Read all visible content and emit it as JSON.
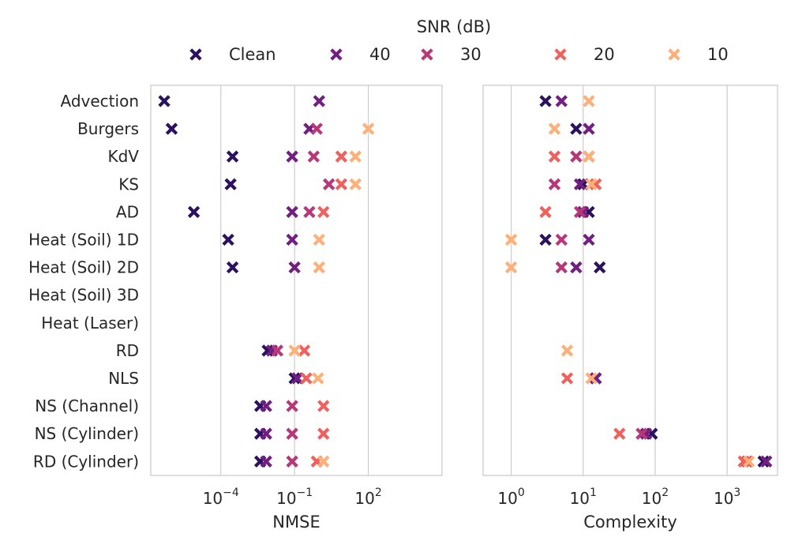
{
  "legend": {
    "title": "SNR (dB)",
    "entries": [
      {
        "label": "Clean",
        "color": "#2c115f"
      },
      {
        "label": "40",
        "color": "#721f81"
      },
      {
        "label": "30",
        "color": "#b73779"
      },
      {
        "label": "20",
        "color": "#f1605d"
      },
      {
        "label": "10",
        "color": "#feb078"
      }
    ]
  },
  "chart_data": [
    {
      "type": "scatter",
      "title": "",
      "xlabel": "NMSE",
      "ylabel": "",
      "xscale": "log",
      "x_ticks": [
        {
          "exp": -4,
          "base": "10",
          "sup": "−4"
        },
        {
          "exp": -1,
          "base": "10",
          "sup": "−1"
        },
        {
          "exp": 2,
          "base": "10",
          "sup": "2"
        }
      ],
      "categories": [
        "Advection",
        "Burgers",
        "KdV",
        "KS",
        "AD",
        "Heat (Soil) 1D",
        "Heat (Soil) 2D",
        "Heat (Soil) 3D",
        "Heat (Laser)",
        "RD",
        "NLS",
        "NS (Channel)",
        "NS (Cylinder)",
        "RD (Cylinder)"
      ],
      "series": [
        {
          "name": "Clean",
          "values": [
            5e-07,
            1e-06,
            0.0003,
            0.00025,
            8e-06,
            0.0002,
            0.0003,
            null,
            null,
            0.008,
            0.1,
            0.004,
            0.004,
            0.004
          ]
        },
        {
          "name": "40",
          "values": [
            1.0,
            0.4,
            0.08,
            null,
            0.08,
            0.08,
            0.1,
            null,
            null,
            0.012,
            0.13,
            0.007,
            0.007,
            0.007
          ]
        },
        {
          "name": "30",
          "values": [
            null,
            0.8,
            0.6,
            2.5,
            0.4,
            null,
            null,
            null,
            null,
            0.02,
            null,
            0.08,
            0.08,
            0.08
          ]
        },
        {
          "name": "20",
          "values": [
            null,
            null,
            8,
            8,
            1.5,
            null,
            null,
            null,
            null,
            0.25,
            0.3,
            1.5,
            1.5,
            0.8
          ]
        },
        {
          "name": "10",
          "values": [
            null,
            100,
            30,
            30,
            null,
            1.0,
            1.0,
            null,
            null,
            0.1,
            0.9,
            null,
            null,
            1.5
          ]
        }
      ]
    },
    {
      "type": "scatter",
      "title": "",
      "xlabel": "Complexity",
      "ylabel": "",
      "xscale": "log",
      "x_ticks": [
        {
          "exp": 0,
          "base": "10",
          "sup": "0"
        },
        {
          "exp": 1,
          "base": "10",
          "sup": "1"
        },
        {
          "exp": 2,
          "base": "10",
          "sup": "2"
        },
        {
          "exp": 3,
          "base": "10",
          "sup": "3"
        }
      ],
      "categories": [
        "Advection",
        "Burgers",
        "KdV",
        "KS",
        "AD",
        "Heat (Soil) 1D",
        "Heat (Soil) 2D",
        "Heat (Soil) 3D",
        "Heat (Laser)",
        "RD",
        "NLS",
        "NS (Channel)",
        "NS (Cylinder)",
        "RD (Cylinder)"
      ],
      "series": [
        {
          "name": "Clean",
          "values": [
            3,
            8,
            null,
            10,
            12,
            3,
            17,
            null,
            null,
            null,
            15,
            null,
            90,
            3200
          ]
        },
        {
          "name": "40",
          "values": [
            5,
            12,
            12,
            9,
            10,
            12,
            8,
            null,
            null,
            null,
            15,
            null,
            75,
            3500
          ]
        },
        {
          "name": "30",
          "values": [
            null,
            null,
            8,
            4,
            9,
            5,
            5,
            null,
            null,
            null,
            null,
            null,
            65,
            1900
          ]
        },
        {
          "name": "20",
          "values": [
            null,
            null,
            4,
            15,
            3,
            null,
            null,
            null,
            null,
            null,
            6,
            null,
            32,
            1700
          ]
        },
        {
          "name": "10",
          "values": [
            12,
            4,
            12,
            13,
            null,
            1,
            1,
            null,
            null,
            6,
            13,
            null,
            null,
            2000
          ]
        }
      ]
    }
  ]
}
